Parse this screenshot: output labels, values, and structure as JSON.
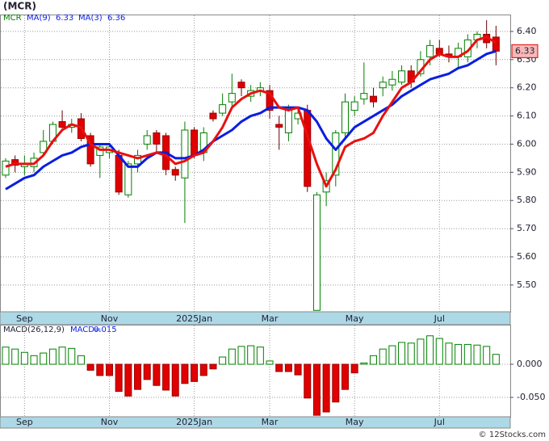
{
  "chart_data": {
    "type": "candlestick",
    "title": "(MCR)",
    "symbol": "MCR",
    "categories": [
      null,
      null,
      "Sep",
      null,
      null,
      null,
      null,
      null,
      null,
      null,
      null,
      "Nov",
      null,
      null,
      null,
      null,
      null,
      null,
      null,
      null,
      "2025Jan",
      null,
      null,
      null,
      null,
      null,
      null,
      null,
      "Mar",
      null,
      null,
      null,
      null,
      null,
      null,
      null,
      null,
      "May",
      null,
      null,
      null,
      null,
      null,
      null,
      null,
      null,
      "Jul",
      null,
      null,
      null,
      null,
      null,
      null
    ],
    "open": [
      5.89,
      5.945,
      5.92,
      5.92,
      5.97,
      6.01,
      6.08,
      6.06,
      6.09,
      6.03,
      5.96,
      5.97,
      5.96,
      5.82,
      5.93,
      6.0,
      6.04,
      6.03,
      5.91,
      5.88,
      6.05,
      5.97,
      6.11,
      6.11,
      6.15,
      6.22,
      6.17,
      6.19,
      6.19,
      6.07,
      6.04,
      6.09,
      6.12,
      5.41,
      5.83,
      5.89,
      6.04,
      6.12,
      6.16,
      6.17,
      6.2,
      6.21,
      6.22,
      6.26,
      6.25,
      6.31,
      6.34,
      6.32,
      6.31,
      6.31,
      6.37,
      6.39,
      6.38
    ],
    "high": [
      5.95,
      5.96,
      5.96,
      5.97,
      6.05,
      6.08,
      6.12,
      6.09,
      6.11,
      6.04,
      6.0,
      6.0,
      5.98,
      5.94,
      5.98,
      6.05,
      6.05,
      6.04,
      5.92,
      6.08,
      6.06,
      6.06,
      6.12,
      6.18,
      6.25,
      6.23,
      6.21,
      6.22,
      6.21,
      6.1,
      6.14,
      6.13,
      6.14,
      5.83,
      5.9,
      6.05,
      6.18,
      6.17,
      6.29,
      6.2,
      6.24,
      6.26,
      6.28,
      6.28,
      6.33,
      6.37,
      6.37,
      6.35,
      6.36,
      6.39,
      6.4,
      6.44,
      6.42
    ],
    "low": [
      5.88,
      5.9,
      5.89,
      5.9,
      5.96,
      6.0,
      6.05,
      6.04,
      6.01,
      5.92,
      5.88,
      5.95,
      5.82,
      5.81,
      5.9,
      5.98,
      5.97,
      5.89,
      5.87,
      5.72,
      5.95,
      5.94,
      6.08,
      6.1,
      6.13,
      6.17,
      6.15,
      6.17,
      6.09,
      5.98,
      6.01,
      6.07,
      5.83,
      5.41,
      5.78,
      5.85,
      6.02,
      6.1,
      6.14,
      6.13,
      6.17,
      6.19,
      6.21,
      6.2,
      6.24,
      6.28,
      6.31,
      6.29,
      6.27,
      6.29,
      6.34,
      6.34,
      6.28
    ],
    "close": [
      5.94,
      5.925,
      5.93,
      5.95,
      6.01,
      6.07,
      6.06,
      6.07,
      6.02,
      5.93,
      5.99,
      5.99,
      5.83,
      5.93,
      5.96,
      6.03,
      6.0,
      5.91,
      5.89,
      6.05,
      5.96,
      6.04,
      6.09,
      6.14,
      6.18,
      6.2,
      6.19,
      6.2,
      6.12,
      6.06,
      6.12,
      6.11,
      5.85,
      5.82,
      5.87,
      6.04,
      6.15,
      6.15,
      6.18,
      6.15,
      6.22,
      6.23,
      6.26,
      6.22,
      6.3,
      6.35,
      6.32,
      6.31,
      6.34,
      6.37,
      6.39,
      6.36,
      6.33
    ],
    "up_color": "#008000",
    "down_color": "#e00000",
    "series": [
      {
        "name": "MA(9)",
        "color": "#0a1ee0",
        "values": [
          5.84,
          5.86,
          5.88,
          5.89,
          5.92,
          5.94,
          5.96,
          5.97,
          5.99,
          6.0,
          6.0,
          6.0,
          5.96,
          5.92,
          5.92,
          5.95,
          5.97,
          5.97,
          5.95,
          5.95,
          5.96,
          5.98,
          6.01,
          6.03,
          6.05,
          6.08,
          6.1,
          6.11,
          6.13,
          6.13,
          6.13,
          6.13,
          6.12,
          6.08,
          6.02,
          5.98,
          6.02,
          6.06,
          6.08,
          6.1,
          6.12,
          6.14,
          6.17,
          6.19,
          6.21,
          6.23,
          6.24,
          6.25,
          6.27,
          6.28,
          6.3,
          6.32,
          6.33
        ]
      },
      {
        "name": "MA(3)",
        "color": "#e81010",
        "values": [
          5.92,
          5.93,
          5.93,
          5.93,
          5.96,
          6.01,
          6.05,
          6.07,
          6.06,
          6.0,
          5.98,
          5.98,
          5.97,
          5.96,
          5.95,
          5.96,
          5.97,
          5.96,
          5.93,
          5.94,
          5.96,
          5.97,
          6.01,
          6.06,
          6.13,
          6.16,
          6.18,
          6.19,
          6.18,
          6.13,
          6.12,
          6.13,
          6.03,
          5.93,
          5.85,
          5.91,
          5.99,
          6.01,
          6.02,
          6.04,
          6.1,
          6.15,
          6.2,
          6.22,
          6.26,
          6.3,
          6.32,
          6.31,
          6.31,
          6.33,
          6.37,
          6.38,
          6.36
        ]
      }
    ],
    "ylim": [
      5.405,
      6.46
    ],
    "yticks": [
      {
        "value": 5.5,
        "label": "5.50"
      },
      {
        "value": 5.6,
        "label": "5.60"
      },
      {
        "value": 5.7,
        "label": "5.70"
      },
      {
        "value": 5.8,
        "label": "5.80"
      },
      {
        "value": 5.9,
        "label": "5.90"
      },
      {
        "value": 6.0,
        "label": "6.00"
      },
      {
        "value": 6.1,
        "label": "6.10"
      },
      {
        "value": 6.2,
        "label": "6.20"
      },
      {
        "value": 6.3,
        "label": "6.30"
      },
      {
        "value": 6.4,
        "label": "6.40"
      }
    ],
    "grid": true,
    "macd": {
      "title": "MACD(26,12,9)",
      "name": "MACD=",
      "values": [
        0.026,
        0.023,
        0.018,
        0.013,
        0.017,
        0.023,
        0.026,
        0.024,
        0.013,
        -0.009,
        -0.017,
        -0.017,
        -0.041,
        -0.048,
        -0.038,
        -0.023,
        -0.032,
        -0.039,
        -0.048,
        -0.029,
        -0.026,
        -0.017,
        -0.007,
        0.011,
        0.023,
        0.027,
        0.028,
        0.026,
        0.005,
        -0.011,
        -0.011,
        -0.016,
        -0.051,
        -0.077,
        -0.072,
        -0.057,
        -0.038,
        -0.013,
        0.002,
        0.013,
        0.023,
        0.028,
        0.033,
        0.032,
        0.038,
        0.043,
        0.039,
        0.032,
        0.03,
        0.03,
        0.029,
        0.027,
        0.015
      ],
      "ylim": [
        -0.0793,
        0.0598
      ],
      "yticks": [
        {
          "value": 0,
          "label": "0.000"
        },
        {
          "value": -0.05,
          "label": "-0.050"
        }
      ]
    },
    "footer": "© 12Stocks.com"
  }
}
